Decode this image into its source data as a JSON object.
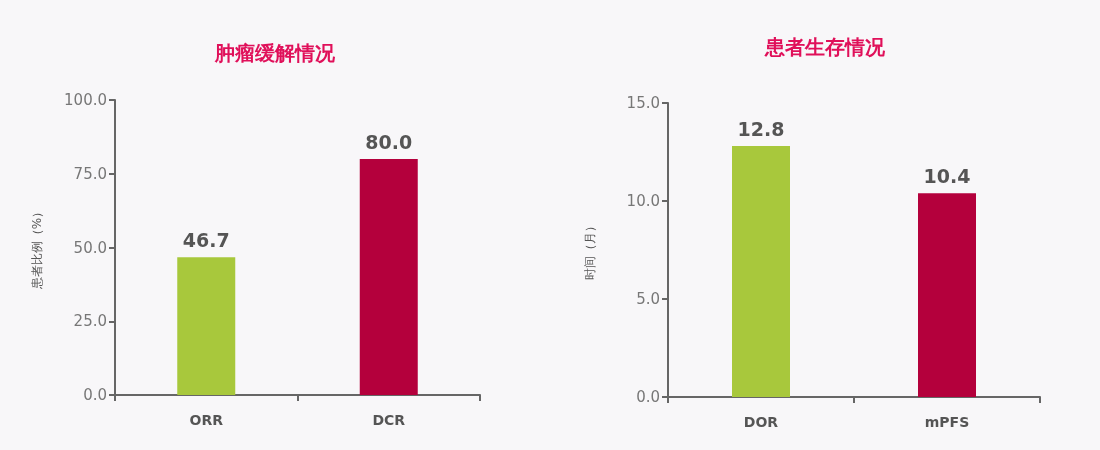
{
  "chart_data": [
    {
      "type": "bar",
      "title": "肿瘤缓解情况",
      "ylabel": "患者比例（%）",
      "categories": [
        "ORR",
        "DCR"
      ],
      "values": [
        46.7,
        80.0
      ],
      "colors": [
        "#a8c83c",
        "#b4003c"
      ],
      "value_labels": [
        "46.7",
        "80.0"
      ],
      "ylim": [
        0,
        100
      ],
      "yticks": [
        {
          "value": 0,
          "label": "0.0"
        },
        {
          "value": 25,
          "label": "25.0"
        },
        {
          "value": 50,
          "label": "50.0"
        },
        {
          "value": 75,
          "label": "75.0"
        },
        {
          "value": 100,
          "label": "100.0"
        }
      ],
      "grid": false
    },
    {
      "type": "bar",
      "title": "患者生存情况",
      "ylabel": "时间（月）",
      "categories": [
        "DOR",
        "mPFS"
      ],
      "values": [
        12.8,
        10.4
      ],
      "colors": [
        "#a8c83c",
        "#b4003c"
      ],
      "value_labels": [
        "12.8",
        "10.4"
      ],
      "ylim": [
        0,
        15
      ],
      "yticks": [
        {
          "value": 0,
          "label": "0.0"
        },
        {
          "value": 5,
          "label": "5.0"
        },
        {
          "value": 10,
          "label": "10.0"
        },
        {
          "value": 15,
          "label": "15.0"
        }
      ],
      "grid": false
    }
  ]
}
